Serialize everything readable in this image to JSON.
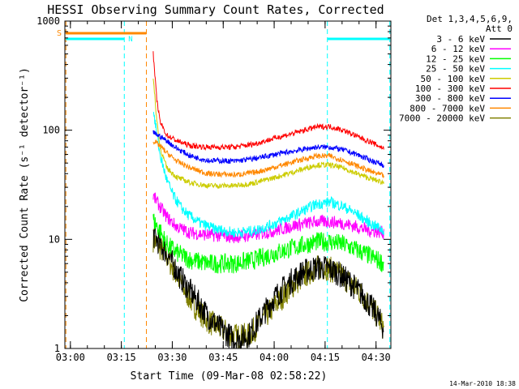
{
  "chart_data": {
    "type": "line",
    "title": "HESSI Observing Summary Count Rates, Corrected",
    "ylabel": "Corrected Count Rate (s⁻¹ detector⁻¹)",
    "xlabel": "Start Time (09-Mar-08 02:58:22)",
    "timestamp": "14-Mar-2010 18:38",
    "y_scale": "log",
    "ylim": [
      1,
      1000
    ],
    "xlim_minutes": [
      0,
      96
    ],
    "y_ticks": [
      {
        "value": 1,
        "label": "1"
      },
      {
        "value": 10,
        "label": "10"
      },
      {
        "value": 100,
        "label": "100"
      },
      {
        "value": 1000,
        "label": "1000"
      }
    ],
    "x_ticks": [
      {
        "t": 1.63,
        "label": "03:00"
      },
      {
        "t": 16.63,
        "label": "03:15"
      },
      {
        "t": 31.63,
        "label": "03:30"
      },
      {
        "t": 46.63,
        "label": "03:45"
      },
      {
        "t": 61.63,
        "label": "04:00"
      },
      {
        "t": 76.63,
        "label": "04:15"
      },
      {
        "t": 91.63,
        "label": "04:30"
      }
    ],
    "legend_header": [
      "Det 1,3,4,5,6,9,",
      "Att 0"
    ],
    "legend_position": "right",
    "series": [
      {
        "name": "3 - 6 keV",
        "color": "#000000",
        "points": [
          [
            26,
            11
          ],
          [
            30,
            7.5
          ],
          [
            34,
            4.5
          ],
          [
            38,
            3
          ],
          [
            42,
            2
          ],
          [
            46,
            1.5
          ],
          [
            50,
            1.2
          ],
          [
            54,
            1.3
          ],
          [
            58,
            2
          ],
          [
            62,
            3
          ],
          [
            66,
            4
          ],
          [
            70,
            5
          ],
          [
            74,
            5.5
          ],
          [
            77,
            5.5
          ],
          [
            80,
            5
          ],
          [
            84,
            4
          ],
          [
            88,
            3
          ],
          [
            92,
            2
          ],
          [
            94,
            1.5
          ]
        ]
      },
      {
        "name": "6 - 12 keV",
        "color": "#ff00ff",
        "points": [
          [
            26,
            25
          ],
          [
            28,
            20
          ],
          [
            30,
            16
          ],
          [
            33,
            13
          ],
          [
            37,
            11.5
          ],
          [
            42,
            11
          ],
          [
            50,
            10.5
          ],
          [
            56,
            11
          ],
          [
            62,
            12
          ],
          [
            68,
            13.5
          ],
          [
            74,
            14.5
          ],
          [
            78,
            14.5
          ],
          [
            82,
            14
          ],
          [
            86,
            13
          ],
          [
            90,
            12
          ],
          [
            94,
            11.5
          ]
        ]
      },
      {
        "name": "12 - 25 keV",
        "color": "#00ff00",
        "points": [
          [
            26,
            15
          ],
          [
            28,
            12
          ],
          [
            30,
            9
          ],
          [
            33,
            7.5
          ],
          [
            37,
            6.5
          ],
          [
            42,
            6
          ],
          [
            50,
            6
          ],
          [
            56,
            6.5
          ],
          [
            62,
            7.5
          ],
          [
            68,
            8.5
          ],
          [
            74,
            9.5
          ],
          [
            78,
            9.5
          ],
          [
            82,
            9
          ],
          [
            86,
            8
          ],
          [
            90,
            7
          ],
          [
            94,
            6
          ]
        ]
      },
      {
        "name": "25 - 50 keV",
        "color": "#00ffff",
        "points": [
          [
            26,
            160
          ],
          [
            27,
            95
          ],
          [
            28,
            60
          ],
          [
            30,
            35
          ],
          [
            32,
            25
          ],
          [
            34,
            20
          ],
          [
            36,
            17
          ],
          [
            40,
            14
          ],
          [
            44,
            12.5
          ],
          [
            50,
            11.5
          ],
          [
            56,
            12
          ],
          [
            62,
            14
          ],
          [
            68,
            17
          ],
          [
            74,
            21
          ],
          [
            78,
            22
          ],
          [
            82,
            20
          ],
          [
            86,
            17
          ],
          [
            90,
            14
          ],
          [
            94,
            12
          ]
        ]
      },
      {
        "name": "50 - 100 keV",
        "color": "#cccc00",
        "points": [
          [
            26,
            300
          ],
          [
            27,
            130
          ],
          [
            28,
            70
          ],
          [
            30,
            45
          ],
          [
            33,
            37
          ],
          [
            37,
            33
          ],
          [
            42,
            31
          ],
          [
            50,
            31
          ],
          [
            56,
            33
          ],
          [
            62,
            37
          ],
          [
            68,
            42
          ],
          [
            74,
            48
          ],
          [
            78,
            48
          ],
          [
            82,
            45
          ],
          [
            86,
            40
          ],
          [
            90,
            36
          ],
          [
            94,
            33
          ]
        ]
      },
      {
        "name": "100 - 300 keV",
        "color": "#ff0000",
        "points": [
          [
            26,
            500
          ],
          [
            27,
            200
          ],
          [
            28,
            120
          ],
          [
            30,
            90
          ],
          [
            33,
            80
          ],
          [
            37,
            72
          ],
          [
            42,
            70
          ],
          [
            50,
            70
          ],
          [
            56,
            75
          ],
          [
            62,
            85
          ],
          [
            68,
            95
          ],
          [
            74,
            107
          ],
          [
            78,
            108
          ],
          [
            82,
            100
          ],
          [
            86,
            88
          ],
          [
            90,
            78
          ],
          [
            94,
            68
          ]
        ]
      },
      {
        "name": "300 - 800 keV",
        "color": "#0000ff",
        "points": [
          [
            26,
            95
          ],
          [
            28,
            88
          ],
          [
            30,
            80
          ],
          [
            33,
            68
          ],
          [
            37,
            58
          ],
          [
            42,
            53
          ],
          [
            50,
            52
          ],
          [
            56,
            55
          ],
          [
            62,
            60
          ],
          [
            68,
            65
          ],
          [
            74,
            70
          ],
          [
            78,
            70
          ],
          [
            82,
            66
          ],
          [
            86,
            60
          ],
          [
            90,
            53
          ],
          [
            94,
            48
          ]
        ]
      },
      {
        "name": "800 - 7000 keV",
        "color": "#ff8800",
        "points": [
          [
            26,
            80
          ],
          [
            28,
            72
          ],
          [
            30,
            62
          ],
          [
            33,
            52
          ],
          [
            37,
            45
          ],
          [
            42,
            40
          ],
          [
            50,
            39
          ],
          [
            56,
            41
          ],
          [
            62,
            46
          ],
          [
            68,
            52
          ],
          [
            74,
            58
          ],
          [
            78,
            58
          ],
          [
            82,
            53
          ],
          [
            86,
            47
          ],
          [
            90,
            42
          ],
          [
            94,
            38
          ]
        ]
      },
      {
        "name": "7000 - 20000 keV",
        "color": "#808000",
        "points": [
          [
            26,
            10
          ],
          [
            30,
            7
          ],
          [
            34,
            4
          ],
          [
            38,
            2.5
          ],
          [
            42,
            1.8
          ],
          [
            46,
            1.5
          ],
          [
            50,
            1.3
          ],
          [
            54,
            1.3
          ],
          [
            58,
            1.8
          ],
          [
            62,
            2.5
          ],
          [
            66,
            3.5
          ],
          [
            70,
            4.5
          ],
          [
            74,
            5.5
          ],
          [
            77,
            5.5
          ],
          [
            80,
            5
          ],
          [
            84,
            4
          ],
          [
            88,
            3
          ],
          [
            92,
            2
          ],
          [
            94,
            1.5
          ]
        ]
      }
    ],
    "flags": {
      "saa_label": "S",
      "night_label": "N",
      "orange_dashed_t": [
        0.3,
        24
      ],
      "cyan_dashed_t": [
        17.5,
        77.3,
        95.7
      ],
      "saa_bar": {
        "t0": 0.3,
        "t1": 24
      },
      "night_bars": [
        {
          "t0": 0.3,
          "t1": 17.5
        },
        {
          "t0": 77.3,
          "t1": 95.7
        }
      ]
    }
  }
}
